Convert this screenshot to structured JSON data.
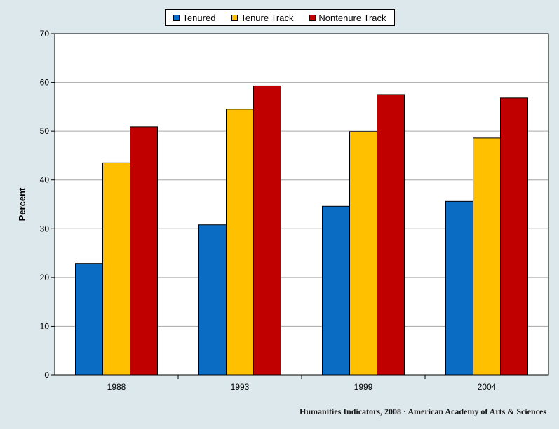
{
  "chart_data": {
    "type": "bar",
    "categories": [
      "1988",
      "1993",
      "1999",
      "2004"
    ],
    "series": [
      {
        "name": "Tenured",
        "values": [
          22.9,
          30.8,
          34.6,
          35.6
        ],
        "color": "#0b6cc4"
      },
      {
        "name": "Tenure Track",
        "values": [
          43.5,
          54.5,
          49.9,
          48.6
        ],
        "color": "#ffc000"
      },
      {
        "name": "Nontenure Track",
        "values": [
          50.9,
          59.3,
          57.5,
          56.8
        ],
        "color": "#c00000"
      }
    ],
    "title": "",
    "xlabel": "",
    "ylabel": "Percent",
    "ylim": [
      0,
      70
    ],
    "yticks": [
      0,
      10,
      20,
      30,
      40,
      50,
      60,
      70
    ],
    "grid": true,
    "legend_position": "top-center"
  },
  "colors": {
    "background": "#dde8ec",
    "plot_background": "#ffffff",
    "gridline": "#a6a6a6"
  },
  "footer": {
    "credit": "Humanities  Indicators, 2008 · American Academy of Arts & Sciences"
  }
}
